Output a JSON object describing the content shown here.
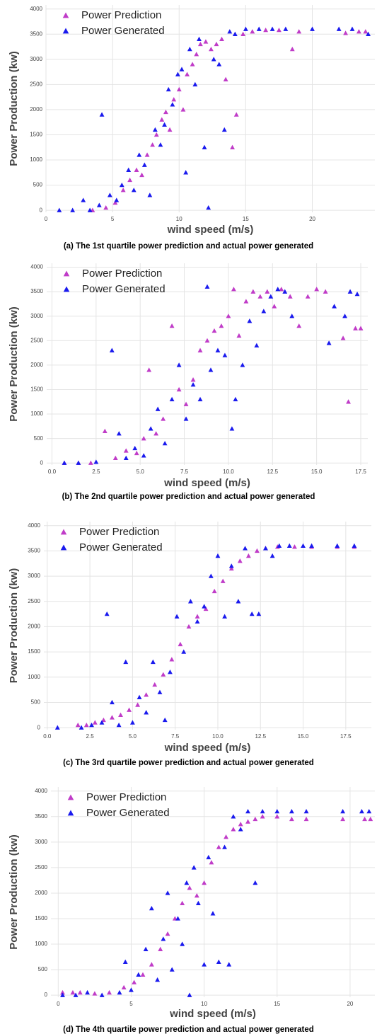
{
  "chart_data": [
    {
      "type": "scatter",
      "caption": "(a) The 1st quartile power prediction and actual power generated",
      "xlabel": "wind speed (m/s)",
      "ylabel": "Power Production (kw)",
      "xlim": [
        0,
        24.7
      ],
      "ylim": [
        -40,
        4080
      ],
      "xticks": [
        0,
        5,
        10,
        15,
        20
      ],
      "yticks": [
        0,
        500,
        1000,
        1500,
        2000,
        2500,
        3000,
        3500,
        4000
      ],
      "grid": true,
      "legend": "upper left",
      "series": [
        {
          "name": "Power Prediction",
          "color": "#c03cc8",
          "x": [
            3.5,
            4.5,
            5.2,
            5.8,
            6.3,
            6.8,
            7.2,
            7.6,
            8.0,
            8.3,
            8.7,
            9.0,
            9.3,
            9.6,
            10.0,
            10.3,
            10.6,
            11.0,
            11.3,
            11.6,
            12.0,
            12.4,
            12.8,
            13.2,
            13.5,
            14.0,
            14.3,
            14.8,
            15.5,
            16.5,
            17.5,
            18.5,
            19.0,
            22.5,
            23.5,
            24.0
          ],
          "values": [
            0,
            50,
            150,
            400,
            600,
            800,
            700,
            1100,
            1300,
            1500,
            1800,
            1950,
            1600,
            2200,
            2400,
            2000,
            2700,
            2900,
            3100,
            3300,
            3350,
            3200,
            3300,
            3400,
            2600,
            1250,
            1900,
            3500,
            3550,
            3580,
            3580,
            3200,
            3550,
            3520,
            3550,
            3550
          ]
        },
        {
          "name": "Power Generated",
          "color": "#1a1aee",
          "x": [
            1.0,
            2.0,
            2.8,
            3.3,
            4.0,
            4.2,
            4.8,
            5.3,
            5.7,
            6.2,
            6.6,
            7.0,
            7.4,
            7.8,
            8.2,
            8.6,
            8.9,
            9.2,
            9.5,
            9.9,
            10.2,
            10.5,
            10.8,
            11.2,
            11.5,
            11.9,
            12.2,
            12.6,
            13.0,
            13.4,
            13.8,
            14.2,
            15.0,
            16.0,
            17.0,
            18.0,
            20.0,
            22.0,
            23.0,
            24.2
          ],
          "values": [
            0,
            0,
            200,
            0,
            100,
            1900,
            300,
            200,
            500,
            800,
            400,
            1100,
            900,
            300,
            1600,
            1300,
            1700,
            2400,
            2100,
            2700,
            2800,
            750,
            3200,
            2500,
            3400,
            1250,
            50,
            3000,
            2900,
            1600,
            3550,
            3500,
            3600,
            3600,
            3600,
            3600,
            3600,
            3600,
            3600,
            3500
          ]
        }
      ]
    },
    {
      "type": "scatter",
      "caption": "(b) The 2nd quartile power prediction and actual power generated",
      "xlabel": "wind speed (m/s)",
      "ylabel": "Power Production (kw)",
      "xlim": [
        -0.3,
        17.9
      ],
      "ylim": [
        -40,
        4080
      ],
      "xticks": [
        {
          "value": 0,
          "label": "0.0"
        },
        2.5,
        {
          "value": 5,
          "label": "5.0"
        },
        7.5,
        {
          "value": 10,
          "label": "10.0"
        },
        12.5,
        {
          "value": 15,
          "label": "15.0"
        },
        17.5
      ],
      "yticks": [
        0,
        500,
        1000,
        1500,
        2000,
        2500,
        3000,
        3500,
        4000
      ],
      "grid": true,
      "legend": "upper left",
      "series": [
        {
          "name": "Power Prediction",
          "color": "#c03cc8",
          "x": [
            0.7,
            1.5,
            2.2,
            3.0,
            3.6,
            4.2,
            4.8,
            5.2,
            5.5,
            5.9,
            6.3,
            6.8,
            7.2,
            7.6,
            8.0,
            8.4,
            8.8,
            9.2,
            9.6,
            10.0,
            10.3,
            10.6,
            11.0,
            11.4,
            11.8,
            12.2,
            12.6,
            13.0,
            13.5,
            14.0,
            14.5,
            15.0,
            15.5,
            16.5,
            16.8,
            17.2,
            17.5
          ],
          "values": [
            0,
            0,
            0,
            650,
            100,
            250,
            200,
            500,
            1900,
            600,
            900,
            2800,
            1500,
            1200,
            1700,
            2300,
            2500,
            2700,
            2800,
            3000,
            3550,
            2600,
            3300,
            3500,
            3400,
            3500,
            3200,
            3550,
            3400,
            2800,
            3400,
            3550,
            3500,
            2550,
            1250,
            2750,
            2750
          ]
        },
        {
          "name": "Power Generated",
          "color": "#1a1aee",
          "x": [
            0.7,
            1.5,
            2.5,
            3.4,
            3.8,
            4.2,
            4.7,
            5.2,
            5.6,
            6.0,
            6.4,
            6.8,
            7.2,
            7.6,
            8.0,
            8.4,
            8.8,
            9.0,
            9.4,
            9.8,
            10.2,
            10.4,
            10.8,
            11.2,
            11.6,
            12.0,
            12.4,
            12.8,
            13.2,
            13.6,
            15.7,
            16.0,
            16.6,
            16.9,
            17.3
          ],
          "values": [
            0,
            0,
            20,
            2300,
            600,
            100,
            300,
            150,
            700,
            1100,
            400,
            1300,
            2000,
            900,
            1600,
            1300,
            3600,
            1900,
            2300,
            2200,
            700,
            1300,
            2000,
            2900,
            2400,
            3100,
            3400,
            3550,
            3500,
            3000,
            2450,
            3200,
            3000,
            3500,
            3450
          ]
        }
      ]
    },
    {
      "type": "scatter",
      "caption": "(c) The 3rd quartile power prediction and actual power generated",
      "xlabel": "wind speed (m/s)",
      "ylabel": "Power Production (kw)",
      "xlim": [
        -0.2,
        19.0
      ],
      "ylim": [
        -40,
        4080
      ],
      "xticks": [
        {
          "value": 0,
          "label": "0.0"
        },
        2.5,
        {
          "value": 5,
          "label": "5.0"
        },
        7.5,
        {
          "value": 10,
          "label": "10.0"
        },
        12.5,
        {
          "value": 15,
          "label": "15.0"
        },
        17.5
      ],
      "yticks": [
        0,
        500,
        1000,
        1500,
        2000,
        2500,
        3000,
        3500,
        4000
      ],
      "grid": true,
      "legend": "upper left",
      "series": [
        {
          "name": "Power Prediction",
          "color": "#c03cc8",
          "x": [
            1.8,
            2.3,
            2.8,
            3.3,
            3.8,
            4.3,
            4.8,
            5.3,
            5.8,
            6.3,
            6.8,
            7.3,
            7.8,
            8.3,
            8.8,
            9.3,
            9.8,
            10.3,
            10.8,
            11.3,
            11.8,
            12.3,
            12.8,
            13.5,
            14.5,
            15.5,
            17.0,
            18.0
          ],
          "values": [
            50,
            50,
            100,
            150,
            200,
            250,
            350,
            450,
            650,
            850,
            1050,
            1350,
            1650,
            2000,
            2200,
            2350,
            2700,
            2900,
            3150,
            3300,
            3400,
            3500,
            3550,
            3580,
            3580,
            3580,
            3580,
            3580
          ]
        },
        {
          "name": "Power Generated",
          "color": "#1a1aee",
          "x": [
            0.6,
            2.0,
            2.6,
            3.2,
            3.5,
            3.8,
            4.2,
            4.6,
            5.0,
            5.4,
            5.8,
            6.2,
            6.6,
            6.9,
            7.2,
            7.6,
            8.0,
            8.4,
            8.8,
            9.2,
            9.6,
            10.0,
            10.4,
            10.8,
            11.2,
            11.6,
            12.0,
            12.4,
            12.8,
            13.2,
            13.6,
            14.2,
            15.0,
            15.5,
            17.0,
            18.0
          ],
          "values": [
            0,
            0,
            50,
            100,
            2250,
            500,
            50,
            1300,
            100,
            600,
            300,
            1300,
            700,
            150,
            1100,
            2200,
            1500,
            2500,
            2100,
            2400,
            3000,
            3400,
            2200,
            3200,
            2500,
            3550,
            2250,
            2250,
            3550,
            3400,
            3600,
            3600,
            3600,
            3600,
            3600,
            3600
          ]
        }
      ]
    },
    {
      "type": "scatter",
      "caption": "(d) The 4th quartile power prediction and actual power generated",
      "xlabel": "wind speed (m/s)",
      "ylabel": "Power Production (kw)",
      "xlim": [
        -0.5,
        21.7
      ],
      "ylim": [
        -40,
        4080
      ],
      "xticks": [
        0,
        5,
        10,
        15,
        20
      ],
      "yticks": [
        0,
        500,
        1000,
        1500,
        2000,
        2500,
        3000,
        3500,
        4000
      ],
      "grid": true,
      "legend": "upper left",
      "series": [
        {
          "name": "Power Prediction",
          "color": "#c03cc8",
          "x": [
            0.3,
            1.0,
            1.5,
            2.5,
            3.5,
            4.5,
            5.2,
            5.8,
            6.4,
            7.0,
            7.5,
            8.0,
            8.5,
            9.0,
            9.5,
            10.0,
            10.5,
            11.0,
            11.5,
            12.0,
            12.5,
            13.0,
            13.5,
            14.0,
            15.0,
            16.0,
            17.0,
            19.5,
            21.0,
            21.4
          ],
          "values": [
            50,
            50,
            50,
            30,
            50,
            150,
            250,
            400,
            600,
            900,
            1200,
            1500,
            1800,
            2100,
            1950,
            2200,
            2600,
            2900,
            3100,
            3250,
            3350,
            3400,
            3450,
            3500,
            3500,
            3450,
            3450,
            3450,
            3450,
            3450
          ]
        },
        {
          "name": "Power Generated",
          "color": "#1a1aee",
          "x": [
            0.3,
            1.2,
            2.0,
            3.0,
            4.2,
            4.6,
            5.0,
            5.5,
            6.0,
            6.4,
            6.8,
            7.2,
            7.5,
            7.8,
            8.2,
            8.5,
            8.8,
            9.0,
            9.3,
            9.6,
            10.0,
            10.3,
            10.6,
            11.0,
            11.4,
            11.7,
            12.0,
            12.5,
            13.0,
            13.5,
            14.0,
            15.0,
            16.0,
            17.0,
            19.5,
            20.8,
            21.3
          ],
          "values": [
            0,
            0,
            50,
            0,
            50,
            650,
            100,
            400,
            900,
            1700,
            300,
            1100,
            2000,
            500,
            1500,
            1000,
            2200,
            0,
            2500,
            1800,
            600,
            2700,
            1600,
            650,
            2900,
            600,
            3500,
            3250,
            3600,
            2200,
            3600,
            3600,
            3600,
            3600,
            3600,
            3600,
            3600
          ]
        }
      ]
    }
  ]
}
